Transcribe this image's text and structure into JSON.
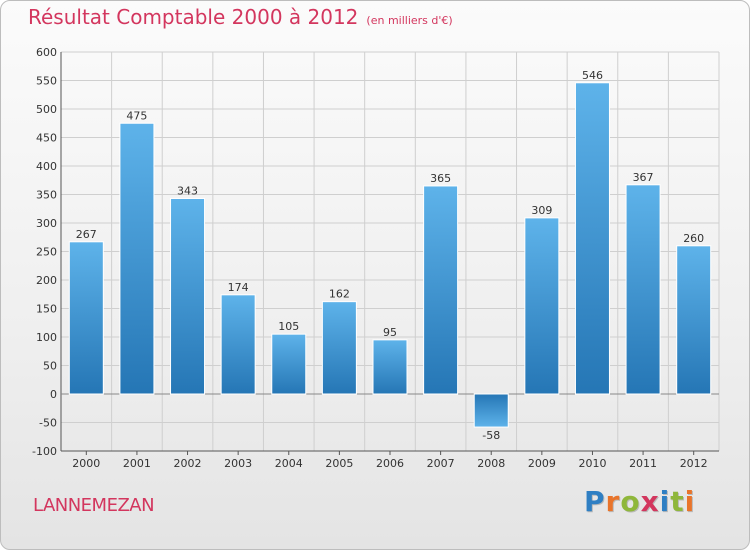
{
  "header": {
    "title": "Résultat Comptable 2000 à 2012",
    "unit": "(en milliers d'€)"
  },
  "footer": {
    "city": "LANNEMEZAN",
    "logo_letters": [
      "P",
      "r",
      "o",
      "x",
      "i",
      "t",
      "i"
    ]
  },
  "colors": {
    "title": "#d3365e",
    "bar_top": "#5eb3ea",
    "bar_bottom": "#2576b5",
    "grid": "#cfcfcf"
  },
  "chart_data": {
    "type": "bar",
    "title": "Résultat Comptable 2000 à 2012",
    "subtitle": "(en milliers d'€)",
    "xlabel": "",
    "ylabel": "",
    "categories": [
      "2000",
      "2001",
      "2002",
      "2003",
      "2004",
      "2005",
      "2006",
      "2007",
      "2008",
      "2009",
      "2010",
      "2011",
      "2012"
    ],
    "values": [
      267,
      475,
      343,
      174,
      105,
      162,
      95,
      365,
      -58,
      309,
      546,
      367,
      260
    ],
    "ylim": [
      -100,
      600
    ],
    "yticks": [
      -100,
      -50,
      0,
      50,
      100,
      150,
      200,
      250,
      300,
      350,
      400,
      450,
      500,
      550,
      600
    ],
    "grid": true,
    "legend": "none"
  }
}
